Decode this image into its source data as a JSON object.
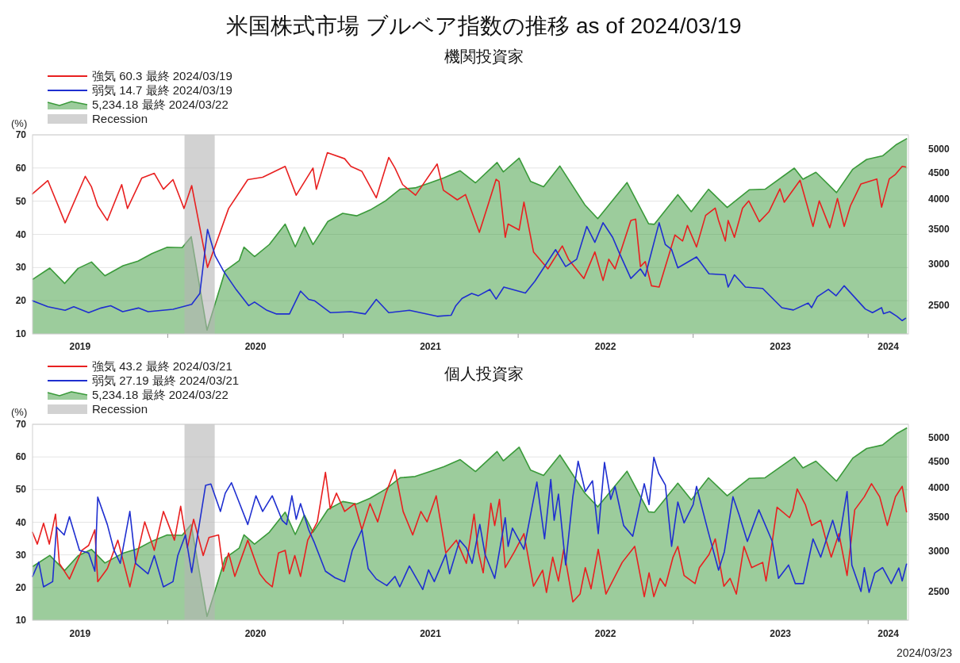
{
  "chart_data": [
    {
      "type": "line",
      "title": "米国株式市場 ブルベア指数の推移 as of  2024/03/19",
      "subtitle": "機関投資家",
      "ylabel": "(%)",
      "xlim": [
        "2019-03-25",
        "2024-03-25"
      ],
      "ylim": [
        10,
        70
      ],
      "yticks": [
        10,
        20,
        30,
        40,
        50,
        60,
        70
      ],
      "y2lim": [
        2200,
        5320
      ],
      "y2ticks": [
        2500,
        3000,
        3500,
        4000,
        4500,
        5000
      ],
      "log": "y2",
      "grid": "y",
      "legend": "top left",
      "xticks": [
        {
          "value": "2019-07-02",
          "label": "2019"
        },
        {
          "value": "2020-01-01",
          "label": null
        },
        {
          "value": "2020-07-02",
          "label": "2020"
        },
        {
          "value": "2021-01-01",
          "label": null
        },
        {
          "value": "2021-07-02",
          "label": "2021"
        },
        {
          "value": "2022-01-01",
          "label": null
        },
        {
          "value": "2022-07-02",
          "label": "2022"
        },
        {
          "value": "2023-01-01",
          "label": null
        },
        {
          "value": "2023-07-02",
          "label": "2023"
        },
        {
          "value": "2024-01-01",
          "label": null
        },
        {
          "value": "2024-02-12",
          "label": "2024"
        }
      ],
      "bands": [
        {
          "axis": "x",
          "from": "2020-02-05",
          "to": "2020-04-08",
          "label": "Recession",
          "color": "#b4b4b4"
        }
      ],
      "series": [
        {
          "name": "強気 60.3 最終 2024/03/19",
          "color": "#e82020",
          "x": [
            "2019-03-25",
            "2019-04-26",
            "2019-06-01",
            "2019-07-13",
            "2019-07-26",
            "2019-08-08",
            "2019-08-28",
            "2019-09-27",
            "2019-10-09",
            "2019-11-08",
            "2019-12-04",
            "2019-12-23",
            "2020-01-12",
            "2020-02-04",
            "2020-02-20",
            "2020-03-24",
            "2020-05-07",
            "2020-06-16",
            "2020-07-17",
            "2020-09-02",
            "2020-09-25",
            "2020-10-30",
            "2020-11-06",
            "2020-11-29",
            "2021-01-04",
            "2021-01-17",
            "2021-02-09",
            "2021-03-11",
            "2021-04-06",
            "2021-04-19",
            "2021-05-05",
            "2021-06-01",
            "2021-07-16",
            "2021-07-29",
            "2021-08-27",
            "2021-09-13",
            "2021-10-12",
            "2021-11-16",
            "2021-11-22",
            "2021-12-05",
            "2021-12-11",
            "2022-01-03",
            "2022-01-13",
            "2022-02-02",
            "2022-03-04",
            "2022-04-03",
            "2022-04-16",
            "2022-05-18",
            "2022-06-10",
            "2022-06-27",
            "2022-07-09",
            "2022-07-22",
            "2022-08-24",
            "2022-09-03",
            "2022-09-13",
            "2022-09-23",
            "2022-10-06",
            "2022-10-22",
            "2022-11-24",
            "2022-12-10",
            "2022-12-20",
            "2023-01-08",
            "2023-01-27",
            "2023-02-16",
            "2023-02-23",
            "2023-03-09",
            "2023-03-15",
            "2023-03-28",
            "2023-04-14",
            "2023-04-27",
            "2023-05-19",
            "2023-06-08",
            "2023-07-01",
            "2023-07-10",
            "2023-08-12",
            "2023-09-08",
            "2023-09-21",
            "2023-10-13",
            "2023-10-29",
            "2023-11-12",
            "2023-11-25",
            "2023-12-17",
            "2024-01-19",
            "2024-01-29",
            "2024-02-14",
            "2024-02-27",
            "2024-03-12",
            "2024-03-19"
          ],
          "values": [
            52.2,
            56.2,
            43.5,
            57.5,
            54.3,
            48.6,
            44.2,
            55,
            47.8,
            57,
            58.4,
            53.6,
            56.5,
            47.8,
            54.7,
            30,
            47.8,
            56.5,
            57.2,
            60.5,
            51.8,
            60,
            53.6,
            64.6,
            62.8,
            60.5,
            59,
            51,
            63.2,
            60,
            55,
            51.8,
            61.2,
            53.3,
            50.4,
            52,
            40.6,
            56.6,
            55.9,
            39.1,
            43.1,
            41.3,
            49.7,
            34.7,
            29.6,
            36.5,
            32.5,
            26.7,
            34.7,
            26.1,
            32.5,
            29.6,
            44.2,
            44.6,
            30.3,
            31.8,
            24.5,
            24.1,
            39.8,
            38,
            42.7,
            36.2,
            45.7,
            47.9,
            44.2,
            38,
            44.2,
            39.1,
            47.9,
            50.1,
            43.8,
            46.8,
            53.7,
            49.7,
            56.3,
            42.4,
            50.1,
            42,
            50.8,
            42.4,
            48.6,
            55.2,
            56.7,
            48.2,
            56.7,
            58.1,
            60.5,
            60.3
          ]
        },
        {
          "name": "弱気 14.7 最終 2024/03/19",
          "color": "#1f2fd0",
          "x": [
            "2019-03-25",
            "2019-04-26",
            "2019-06-01",
            "2019-06-19",
            "2019-07-20",
            "2019-08-15",
            "2019-09-04",
            "2019-09-29",
            "2019-11-01",
            "2019-11-21",
            "2020-01-12",
            "2020-02-20",
            "2020-03-08",
            "2020-03-24",
            "2020-04-09",
            "2020-04-27",
            "2020-05-23",
            "2020-06-18",
            "2020-06-30",
            "2020-07-26",
            "2020-08-15",
            "2020-09-11",
            "2020-10-04",
            "2020-10-21",
            "2020-11-02",
            "2020-12-05",
            "2021-01-17",
            "2021-02-16",
            "2021-03-11",
            "2021-04-06",
            "2021-05-19",
            "2021-07-16",
            "2021-08-14",
            "2021-08-24",
            "2021-09-06",
            "2021-09-26",
            "2021-10-10",
            "2021-11-03",
            "2021-11-16",
            "2021-12-02",
            "2022-01-16",
            "2022-02-05",
            "2022-03-20",
            "2022-04-10",
            "2022-05-03",
            "2022-05-24",
            "2022-06-10",
            "2022-06-27",
            "2022-07-17",
            "2022-07-30",
            "2022-08-24",
            "2022-09-13",
            "2022-09-23",
            "2022-10-22",
            "2022-11-04",
            "2022-11-17",
            "2022-11-30",
            "2023-01-08",
            "2023-02-03",
            "2023-03-09",
            "2023-03-15",
            "2023-03-28",
            "2023-04-20",
            "2023-05-26",
            "2023-07-05",
            "2023-07-29",
            "2023-08-29",
            "2023-09-05",
            "2023-09-17",
            "2023-10-10",
            "2023-10-26",
            "2023-11-12",
            "2023-12-26",
            "2024-01-10",
            "2024-01-29",
            "2024-02-02",
            "2024-02-15",
            "2024-03-01",
            "2024-03-12",
            "2024-03-19"
          ],
          "values": [
            20,
            18.2,
            17.1,
            18.2,
            16.4,
            17.8,
            18.5,
            16.7,
            17.8,
            16.7,
            17.4,
            18.9,
            22.2,
            41.5,
            33.5,
            28.8,
            23.3,
            18.5,
            19.6,
            17.1,
            16,
            16,
            22.9,
            20.4,
            20,
            16.4,
            16.7,
            16,
            20.4,
            16.4,
            17.1,
            15.3,
            15.6,
            18.5,
            20.7,
            22.2,
            21.5,
            23.4,
            20.5,
            24.1,
            22.3,
            25.9,
            35.4,
            30.3,
            32.5,
            42.4,
            37.6,
            43.5,
            39.1,
            34.7,
            26.7,
            29.6,
            27.4,
            43.5,
            36.9,
            35.4,
            29.9,
            33.2,
            28.1,
            27.8,
            24.1,
            27.8,
            24.1,
            23.7,
            17.9,
            17.2,
            19.3,
            17.9,
            21.2,
            23.4,
            21.5,
            24.5,
            17.5,
            16.4,
            17.9,
            16.1,
            16.7,
            15.3,
            14,
            14.7
          ]
        },
        {
          "name": "5,234.18 最終 2024/03/22",
          "color": "#3a9a3a",
          "type": "area",
          "axis": "y2",
          "x": [
            "2019-03-25",
            "2019-04-30",
            "2019-05-31",
            "2019-06-28",
            "2019-07-26",
            "2019-08-23",
            "2019-09-30",
            "2019-10-31",
            "2019-11-29",
            "2019-12-31",
            "2020-01-31",
            "2020-02-19",
            "2020-03-23",
            "2020-04-30",
            "2020-05-29",
            "2020-06-08",
            "2020-06-30",
            "2020-07-31",
            "2020-09-02",
            "2020-09-23",
            "2020-10-12",
            "2020-10-30",
            "2020-11-30",
            "2020-12-31",
            "2021-01-29",
            "2021-02-26",
            "2021-03-31",
            "2021-04-30",
            "2021-05-31",
            "2021-06-30",
            "2021-07-30",
            "2021-09-02",
            "2021-10-04",
            "2021-11-18",
            "2021-12-01",
            "2022-01-03",
            "2022-01-27",
            "2022-02-23",
            "2022-03-29",
            "2022-05-20",
            "2022-06-16",
            "2022-08-16",
            "2022-09-30",
            "2022-10-12",
            "2022-11-30",
            "2022-12-28",
            "2023-02-02",
            "2023-03-13",
            "2023-04-28",
            "2023-05-31",
            "2023-07-31",
            "2023-08-18",
            "2023-09-14",
            "2023-10-27",
            "2023-11-30",
            "2023-12-29",
            "2024-01-31",
            "2024-02-29",
            "2024-03-22"
          ],
          "values": [
            2800,
            2946,
            2752,
            2942,
            3026,
            2847,
            2977,
            3038,
            3141,
            3231,
            3226,
            3386,
            2237,
            2912,
            3044,
            3232,
            3100,
            3271,
            3580,
            3237,
            3534,
            3270,
            3622,
            3756,
            3714,
            3811,
            3973,
            4181,
            4204,
            4298,
            4395,
            4537,
            4300,
            4705,
            4513,
            4797,
            4326,
            4225,
            4632,
            3901,
            3667,
            4305,
            3586,
            3577,
            4080,
            3783,
            4179,
            3855,
            4169,
            4180,
            4589,
            4370,
            4505,
            4117,
            4568,
            4770,
            4846,
            5096,
            5234
          ]
        }
      ]
    },
    {
      "type": "line",
      "title": "個人投資家",
      "ylabel": "(%)",
      "xlim": [
        "2019-03-25",
        "2024-03-25"
      ],
      "ylim": [
        10,
        70
      ],
      "yticks": [
        10,
        20,
        30,
        40,
        50,
        60,
        70
      ],
      "y2lim": [
        2200,
        5320
      ],
      "y2ticks": [
        2500,
        3000,
        3500,
        4000,
        4500,
        5000
      ],
      "log": "y2",
      "grid": "y",
      "legend": "top left",
      "xticks": [
        {
          "value": "2019-07-02",
          "label": "2019"
        },
        {
          "value": "2020-01-01",
          "label": null
        },
        {
          "value": "2020-07-02",
          "label": "2020"
        },
        {
          "value": "2021-01-01",
          "label": null
        },
        {
          "value": "2021-07-02",
          "label": "2021"
        },
        {
          "value": "2022-01-01",
          "label": null
        },
        {
          "value": "2022-07-02",
          "label": "2022"
        },
        {
          "value": "2023-01-01",
          "label": null
        },
        {
          "value": "2023-07-02",
          "label": "2023"
        },
        {
          "value": "2024-01-01",
          "label": null
        },
        {
          "value": "2024-02-12",
          "label": "2024"
        }
      ],
      "bands": [
        {
          "axis": "x",
          "from": "2020-02-05",
          "to": "2020-04-08",
          "label": "Recession",
          "color": "#b4b4b4"
        }
      ],
      "annotations": [
        "2024/03/23"
      ],
      "series": [
        {
          "name": "強気 43.2 最終 2024/03/21",
          "color": "#e82020",
          "x": [
            "2019-03-25",
            "2019-04-04",
            "2019-04-17",
            "2019-04-29",
            "2019-05-12",
            "2019-05-20",
            "2019-06-10",
            "2019-07-06",
            "2019-07-20",
            "2019-08-02",
            "2019-08-08",
            "2019-08-28",
            "2019-09-19",
            "2019-10-14",
            "2019-11-14",
            "2019-12-04",
            "2019-12-23",
            "2020-01-15",
            "2020-01-28",
            "2020-02-11",
            "2020-02-24",
            "2020-03-15",
            "2020-03-27",
            "2020-04-16",
            "2020-04-26",
            "2020-05-07",
            "2020-05-20",
            "2020-06-16",
            "2020-07-11",
            "2020-07-24",
            "2020-08-06",
            "2020-08-19",
            "2020-09-02",
            "2020-09-11",
            "2020-09-22",
            "2020-10-04",
            "2020-10-19",
            "2020-11-08",
            "2020-11-25",
            "2020-12-05",
            "2020-12-18",
            "2021-01-04",
            "2021-01-25",
            "2021-02-09",
            "2021-02-26",
            "2021-03-14",
            "2021-03-31",
            "2021-04-19",
            "2021-05-06",
            "2021-05-26",
            "2021-06-12",
            "2021-06-25",
            "2021-07-14",
            "2021-08-03",
            "2021-08-25",
            "2021-09-15",
            "2021-10-01",
            "2021-10-10",
            "2021-10-20",
            "2021-11-05",
            "2021-11-13",
            "2021-11-23",
            "2021-12-05",
            "2021-12-24",
            "2022-01-13",
            "2022-02-02",
            "2022-02-21",
            "2022-03-01",
            "2022-03-14",
            "2022-03-26",
            "2022-04-06",
            "2022-04-25",
            "2022-05-10",
            "2022-05-21",
            "2022-06-02",
            "2022-06-17",
            "2022-07-03",
            "2022-07-17",
            "2022-08-06",
            "2022-09-01",
            "2022-09-21",
            "2022-10-01",
            "2022-10-11",
            "2022-10-24",
            "2022-11-04",
            "2022-11-20",
            "2022-11-30",
            "2022-12-13",
            "2023-01-05",
            "2023-01-14",
            "2023-02-03",
            "2023-02-16",
            "2023-03-06",
            "2023-03-19",
            "2023-04-01",
            "2023-04-17",
            "2023-05-03",
            "2023-05-26",
            "2023-06-02",
            "2023-06-15",
            "2023-06-25",
            "2023-07-21",
            "2023-07-28",
            "2023-08-06",
            "2023-08-23",
            "2023-09-05",
            "2023-09-24",
            "2023-10-06",
            "2023-10-16",
            "2023-11-01",
            "2023-11-18",
            "2023-12-04",
            "2023-12-24",
            "2024-01-08",
            "2024-01-25",
            "2024-02-10",
            "2024-02-27",
            "2024-03-12",
            "2024-03-21"
          ],
          "values": [
            36.9,
            33.3,
            39.7,
            33.3,
            42.5,
            27.4,
            22.6,
            31.4,
            32.9,
            37.7,
            21.8,
            25.8,
            34.5,
            20.2,
            40.1,
            31.4,
            43.3,
            34.5,
            44.9,
            32.2,
            40.9,
            29.8,
            35.3,
            36.1,
            25,
            30.6,
            23.4,
            34.5,
            24.2,
            21.8,
            20.2,
            30.6,
            31.4,
            24.2,
            29.8,
            23.4,
            34.5,
            40.1,
            55.3,
            44.1,
            48.9,
            43.3,
            45.7,
            37.7,
            45.7,
            40.1,
            48.9,
            56.1,
            43.3,
            36.1,
            43.3,
            40.1,
            48.1,
            30.6,
            34.5,
            27.4,
            42.5,
            30.9,
            24.5,
            45.8,
            39,
            47,
            26.1,
            30.9,
            36.5,
            20.4,
            25.3,
            18.5,
            29.3,
            22,
            31.7,
            15.6,
            18,
            26.1,
            19.6,
            31.7,
            18,
            22,
            27.7,
            32.6,
            17.2,
            24.5,
            17.2,
            22.8,
            20.4,
            29.3,
            32.6,
            23.7,
            21.2,
            26.1,
            30.1,
            34.9,
            20.4,
            22.8,
            18,
            32.6,
            26.1,
            27.7,
            22,
            34.1,
            44.6,
            41.4,
            43.8,
            50.2,
            45.4,
            39,
            40.6,
            34.1,
            29.3,
            36.5,
            23.7,
            43.8,
            47.8,
            51.8,
            47.8,
            39,
            47.8,
            51,
            43.2
          ]
        },
        {
          "name": "弱気 27.19 最終 2024/03/21",
          "color": "#1f2fd0",
          "x": [
            "2019-03-25",
            "2019-04-07",
            "2019-04-17",
            "2019-05-06",
            "2019-05-14",
            "2019-05-30",
            "2019-06-10",
            "2019-07-01",
            "2019-07-20",
            "2019-08-02",
            "2019-08-08",
            "2019-08-28",
            "2019-09-11",
            "2019-09-24",
            "2019-10-14",
            "2019-10-26",
            "2019-11-21",
            "2019-12-04",
            "2019-12-23",
            "2020-01-12",
            "2020-01-22",
            "2020-02-07",
            "2020-02-20",
            "2020-03-06",
            "2020-03-20",
            "2020-03-31",
            "2020-04-20",
            "2020-04-30",
            "2020-05-13",
            "2020-05-30",
            "2020-06-16",
            "2020-07-03",
            "2020-07-17",
            "2020-08-06",
            "2020-08-27",
            "2020-09-05",
            "2020-09-16",
            "2020-09-25",
            "2020-10-04",
            "2020-10-21",
            "2020-11-02",
            "2020-11-25",
            "2020-12-15",
            "2021-01-04",
            "2021-01-20",
            "2021-02-09",
            "2021-02-22",
            "2021-03-11",
            "2021-04-02",
            "2021-04-19",
            "2021-04-29",
            "2021-05-19",
            "2021-06-16",
            "2021-06-28",
            "2021-07-10",
            "2021-08-03",
            "2021-08-11",
            "2021-09-01",
            "2021-09-15",
            "2021-09-27",
            "2021-10-13",
            "2021-10-24",
            "2021-11-13",
            "2021-12-05",
            "2021-12-11",
            "2021-12-20",
            "2022-01-13",
            "2022-02-09",
            "2022-02-25",
            "2022-03-10",
            "2022-03-17",
            "2022-03-26",
            "2022-04-10",
            "2022-04-25",
            "2022-05-06",
            "2022-05-21",
            "2022-06-05",
            "2022-06-17",
            "2022-06-30",
            "2022-07-13",
            "2022-07-22",
            "2022-08-09",
            "2022-08-28",
            "2022-09-21",
            "2022-10-01",
            "2022-10-11",
            "2022-10-21",
            "2022-11-04",
            "2022-11-17",
            "2022-11-30",
            "2022-12-13",
            "2023-01-01",
            "2023-01-08",
            "2023-02-01",
            "2023-02-23",
            "2023-03-07",
            "2023-03-25",
            "2023-04-07",
            "2023-04-24",
            "2023-05-18",
            "2023-06-15",
            "2023-06-28",
            "2023-07-19",
            "2023-08-02",
            "2023-08-19",
            "2023-09-08",
            "2023-09-24",
            "2023-10-19",
            "2023-11-01",
            "2023-11-18",
            "2023-11-28",
            "2023-12-17",
            "2023-12-24",
            "2024-01-03",
            "2024-01-15",
            "2024-01-31",
            "2024-02-18",
            "2024-03-05",
            "2024-03-12",
            "2024-03-21"
          ],
          "values": [
            23.4,
            27.8,
            20.2,
            21.8,
            38.5,
            36.1,
            41.7,
            31.4,
            30.6,
            25,
            47.7,
            39.3,
            31.4,
            27.4,
            43.3,
            27.4,
            24.2,
            29.8,
            20.2,
            21.8,
            29.8,
            36.1,
            24.6,
            38.5,
            51.3,
            51.7,
            43.3,
            48.9,
            52.1,
            45.7,
            39.3,
            48.1,
            43.3,
            48.1,
            40.5,
            39.3,
            48.1,
            40.9,
            45.7,
            37.7,
            33.7,
            25,
            23,
            21.8,
            31.4,
            37.7,
            25.8,
            22.6,
            20.6,
            23.4,
            20.2,
            26.6,
            19.4,
            25.4,
            21.8,
            30.2,
            24.2,
            34.5,
            32.1,
            27.4,
            39.3,
            30.1,
            22.8,
            41.4,
            32.6,
            38.2,
            31.7,
            52.3,
            34.9,
            53.1,
            40.6,
            48.6,
            26.9,
            47.8,
            58.7,
            49.4,
            52.7,
            36.5,
            58.3,
            47,
            51,
            39,
            35.7,
            51.8,
            45.4,
            59.9,
            55,
            51.4,
            32.6,
            46.2,
            39.8,
            45.4,
            51,
            37.3,
            25.3,
            30.9,
            47.8,
            42.2,
            34.1,
            43.8,
            34.1,
            22.8,
            26.9,
            21.2,
            21.2,
            34.9,
            29.3,
            40.6,
            34.1,
            49.4,
            26.9,
            18.8,
            26.1,
            18.5,
            24.5,
            26.1,
            21.2,
            26,
            22,
            27.19
          ]
        },
        {
          "name": "5,234.18 最終 2024/03/22",
          "color": "#3a9a3a",
          "type": "area",
          "axis": "y2",
          "x": [
            "2019-03-25",
            "2019-04-30",
            "2019-05-31",
            "2019-06-28",
            "2019-07-26",
            "2019-08-23",
            "2019-09-30",
            "2019-10-31",
            "2019-11-29",
            "2019-12-31",
            "2020-01-31",
            "2020-02-19",
            "2020-03-23",
            "2020-04-30",
            "2020-05-29",
            "2020-06-08",
            "2020-06-30",
            "2020-07-31",
            "2020-09-02",
            "2020-09-23",
            "2020-10-12",
            "2020-10-30",
            "2020-11-30",
            "2020-12-31",
            "2021-01-29",
            "2021-02-26",
            "2021-03-31",
            "2021-04-30",
            "2021-05-31",
            "2021-06-30",
            "2021-07-30",
            "2021-09-02",
            "2021-10-04",
            "2021-11-18",
            "2021-12-01",
            "2022-01-03",
            "2022-01-27",
            "2022-02-23",
            "2022-03-29",
            "2022-05-20",
            "2022-06-16",
            "2022-08-16",
            "2022-09-30",
            "2022-10-12",
            "2022-11-30",
            "2022-12-28",
            "2023-02-02",
            "2023-03-13",
            "2023-04-28",
            "2023-05-31",
            "2023-07-31",
            "2023-08-18",
            "2023-09-14",
            "2023-10-27",
            "2023-11-30",
            "2023-12-29",
            "2024-01-31",
            "2024-02-29",
            "2024-03-22"
          ],
          "values": [
            2800,
            2946,
            2752,
            2942,
            3026,
            2847,
            2977,
            3038,
            3141,
            3231,
            3226,
            3386,
            2237,
            2912,
            3044,
            3232,
            3100,
            3271,
            3580,
            3237,
            3534,
            3270,
            3622,
            3756,
            3714,
            3811,
            3973,
            4181,
            4204,
            4298,
            4395,
            4537,
            4300,
            4705,
            4513,
            4797,
            4326,
            4225,
            4632,
            3901,
            3667,
            4305,
            3586,
            3577,
            4080,
            3783,
            4179,
            3855,
            4169,
            4180,
            4589,
            4370,
            4505,
            4117,
            4568,
            4770,
            4846,
            5096,
            5234
          ]
        }
      ]
    }
  ]
}
